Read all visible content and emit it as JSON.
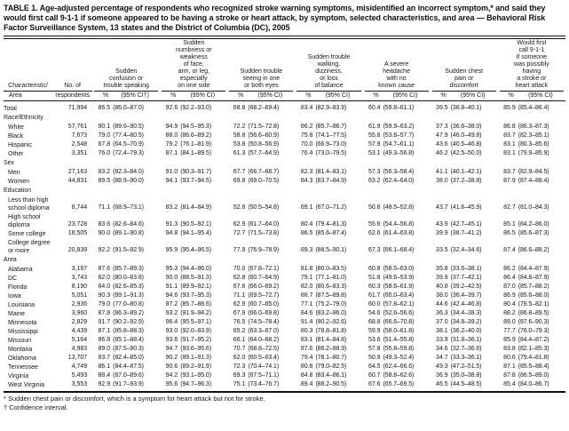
{
  "title": "TABLE 1. Age-adjusted percentage of respondents who recognized stroke warning symptoms, misidentified an incorrect symptom,* and said they would first call 9-1-1 if someone appeared to be having a stroke or heart attack, by symptom, selected characteristics, and area — Behavioral Risk Factor Surveillance System, 13 states and the District of Columbia (DC), 2005",
  "table": {
    "row_header": {
      "line1": "Characteristic/",
      "line2": "Area"
    },
    "n_header": {
      "line1": "No. of",
      "line2": "respondents"
    },
    "subheader_pct": "%",
    "subheader_ci": "(95% CI)",
    "subheader_ci_first": "(95% CI†)",
    "columns": [
      {
        "id": "confusion",
        "lines": [
          "Sudden",
          "confusion or",
          "trouble speaking"
        ]
      },
      {
        "id": "numbness",
        "lines": [
          "Sudden",
          "numbness or",
          "weakness",
          "of face,",
          "arm, or leg,",
          "especially",
          "on one side"
        ]
      },
      {
        "id": "seeing",
        "lines": [
          "Sudden trouble",
          "seeing in one",
          "or both eyes"
        ]
      },
      {
        "id": "walking",
        "lines": [
          "Sudden trouble",
          "walking,",
          "dizziness,",
          "or loss",
          "of balance"
        ]
      },
      {
        "id": "headache",
        "lines": [
          "A severe",
          "headache",
          "with no",
          "known cause"
        ]
      },
      {
        "id": "chest-pain",
        "lines": [
          "Sudden chest",
          "pain or",
          "discomfort"
        ]
      },
      {
        "id": "call-911",
        "lines": [
          "Would first",
          "call 9-1-1",
          "if someone",
          "was possibly",
          "having",
          "a stroke or",
          "heart attack"
        ]
      }
    ],
    "rows": [
      {
        "type": "data",
        "label": "Total",
        "indent": false,
        "n": "71,994",
        "cells": [
          [
            "86.5",
            "(86.0–87.0)"
          ],
          [
            "92.6",
            "(92.2–93.0)"
          ],
          [
            "68.8",
            "(68.2–69.4)"
          ],
          [
            "83.4",
            "(82.9–83.9)"
          ],
          [
            "60.4",
            "(59.8–61.1)"
          ],
          [
            "39.5",
            "(38.8–40.1)"
          ],
          [
            "85.9",
            "(85.4–86.4)"
          ]
        ]
      },
      {
        "type": "section",
        "label": "Race/Ethnicity"
      },
      {
        "type": "data",
        "label": "White",
        "indent": true,
        "n": "57,761",
        "cells": [
          [
            "90.1",
            "(89.6–90.5)"
          ],
          [
            "94.9",
            "(94.5–95.3)"
          ],
          [
            "72.2",
            "(71.5–72.8)"
          ],
          [
            "86.2",
            "(85.7–86.7)"
          ],
          [
            "61.9",
            "(59.9–63.2)"
          ],
          [
            "37.3",
            "(36.6–38.0)"
          ],
          [
            "86.8",
            "(86.3–87.3)"
          ]
        ]
      },
      {
        "type": "data",
        "label": "Black",
        "indent": true,
        "n": "7,673",
        "cells": [
          [
            "79.0",
            "(77.4–80.5)"
          ],
          [
            "88.0",
            "(86.6–89.2)"
          ],
          [
            "58.8",
            "(56.6–60.9)"
          ],
          [
            "75.8",
            "(74.1–77.5)"
          ],
          [
            "55.8",
            "(53.8–57.7)"
          ],
          [
            "47.9",
            "(46.0–49.8)"
          ],
          [
            "83.7",
            "(82.3–85.1)"
          ]
        ]
      },
      {
        "type": "data",
        "label": "Hispanic",
        "indent": true,
        "n": "2,548",
        "cells": [
          [
            "67.8",
            "(64.5–70.9)"
          ],
          [
            "79.2",
            "(76.1–81.9)"
          ],
          [
            "53.8",
            "(50.8–56.9)"
          ],
          [
            "70.0",
            "(66.9–73.0)"
          ],
          [
            "57.9",
            "(54.7–61.1)"
          ],
          [
            "43.6",
            "(40.5–46.8)"
          ],
          [
            "83.1",
            "(80.3–85.6)"
          ]
        ]
      },
      {
        "type": "data",
        "label": "Other",
        "indent": true,
        "n": "3,351",
        "cells": [
          [
            "76.0",
            "(72.4–79.3)"
          ],
          [
            "87.1",
            "(84.1–89.5)"
          ],
          [
            "61.3",
            "(57.7–64.9)"
          ],
          [
            "76.4",
            "(73.0–79.5)"
          ],
          [
            "53.1",
            "(49.3–56.8)"
          ],
          [
            "46.2",
            "(42.5–50.0)"
          ],
          [
            "83.1",
            "(79.9–85.9)"
          ]
        ]
      },
      {
        "type": "section",
        "label": "Sex"
      },
      {
        "type": "data",
        "label": "Men",
        "indent": true,
        "n": "27,163",
        "cells": [
          [
            "83.2",
            "(82.3–84.0)"
          ],
          [
            "91.0",
            "(90.3–91.7)"
          ],
          [
            "67.7",
            "(66.7–68.7)"
          ],
          [
            "82.3",
            "(81.4–83.1)"
          ],
          [
            "57.3",
            "(56.3–58.4)"
          ],
          [
            "41.1",
            "(40.1–42.1)"
          ],
          [
            "83.7",
            "(82.9–84.5)"
          ]
        ]
      },
      {
        "type": "data",
        "label": "Women",
        "indent": true,
        "n": "44,831",
        "cells": [
          [
            "89.5",
            "(88.9–90.0)"
          ],
          [
            "94.1",
            "(93.7–94.5)"
          ],
          [
            "69.8",
            "(69.0–70.5)"
          ],
          [
            "84.3",
            "(83.7–84.9)"
          ],
          [
            "63.2",
            "(62.4–64.0)"
          ],
          [
            "38.0",
            "(37.2–38.8)"
          ],
          [
            "87.9",
            "(87.4–88.4)"
          ]
        ]
      },
      {
        "type": "section",
        "label": "Education"
      },
      {
        "type": "data",
        "label": "Less than high school diploma",
        "indent": true,
        "n": "8,744",
        "cells": [
          [
            "71.1",
            "(68.9–73.1)"
          ],
          [
            "83.2",
            "(81.4–84.9)"
          ],
          [
            "52.6",
            "(50.5–54.8)"
          ],
          [
            "69.1",
            "(67.0–71.2)"
          ],
          [
            "50.6",
            "(48.5–52.8)"
          ],
          [
            "43.7",
            "(41.6–45.9)"
          ],
          [
            "82.7",
            "(81.0–84.3)"
          ]
        ]
      },
      {
        "type": "data",
        "label": "High school diploma",
        "indent": true,
        "n": "23,728",
        "cells": [
          [
            "83.6",
            "(82.6–84.6)"
          ],
          [
            "91.3",
            "(90.5–92.1)"
          ],
          [
            "62.9",
            "(61.7–64.0)"
          ],
          [
            "80.4",
            "(79.4–81.3)"
          ],
          [
            "55.6",
            "(54.4–56.8)"
          ],
          [
            "43.9",
            "(42.7–45.1)"
          ],
          [
            "85.1",
            "(84.2–86.0)"
          ]
        ]
      },
      {
        "type": "data",
        "label": "Some college",
        "indent": true,
        "n": "18,505",
        "cells": [
          [
            "90.0",
            "(89.1–90.8)"
          ],
          [
            "94.8",
            "(94.1–95.4)"
          ],
          [
            "72.7",
            "(71.5–73.8)"
          ],
          [
            "86.5",
            "(85.6–87.4)"
          ],
          [
            "62.6",
            "(61.4–63.8)"
          ],
          [
            "39.9",
            "(38.7–41.2)"
          ],
          [
            "86.5",
            "(85.6–87.3)"
          ]
        ]
      },
      {
        "type": "data",
        "label": "College degree or more",
        "indent": true,
        "n": "20,839",
        "cells": [
          [
            "92.2",
            "(91.5–92.9)"
          ],
          [
            "95.9",
            "(95.4–96.5)"
          ],
          [
            "77.9",
            "(76.9–78.9)"
          ],
          [
            "89.3",
            "(88.5–90.1)"
          ],
          [
            "67.3",
            "(66.1–68.4)"
          ],
          [
            "33.5",
            "(32.4–34.6)"
          ],
          [
            "87.4",
            "(86.6–88.2)"
          ]
        ]
      },
      {
        "type": "section",
        "label": "Area"
      },
      {
        "type": "data",
        "label": "Alabama",
        "indent": true,
        "n": "3,197",
        "cells": [
          [
            "87.6",
            "(85.7–89.3)"
          ],
          [
            "95.3",
            "(94.4–96.0)"
          ],
          [
            "70.0",
            "(67.8–72.1)"
          ],
          [
            "81.8",
            "(80.0–83.5)"
          ],
          [
            "60.8",
            "(58.5–63.0)"
          ],
          [
            "35.8",
            "(33.6–38.1)"
          ],
          [
            "86.2",
            "(84.4–87.9)"
          ]
        ]
      },
      {
        "type": "data",
        "label": "DC",
        "indent": true,
        "n": "3,743",
        "cells": [
          [
            "82.0",
            "(80.0–83.8)"
          ],
          [
            "90.0",
            "(88.5–91.3)"
          ],
          [
            "62.8",
            "(60.7–64.9)"
          ],
          [
            "79.1",
            "(77.1–81.0)"
          ],
          [
            "51.8",
            "(49.6–53.9)"
          ],
          [
            "39.9",
            "(37.7–42.1)"
          ],
          [
            "86.4",
            "(84.8–87.9)"
          ]
        ]
      },
      {
        "type": "data",
        "label": "Florida",
        "indent": true,
        "n": "8,190",
        "cells": [
          [
            "84.0",
            "(82.6–85.3)"
          ],
          [
            "91.1",
            "(89.9–92.1)"
          ],
          [
            "67.6",
            "(66.0–69.2)"
          ],
          [
            "82.0",
            "(80.6–83.3)"
          ],
          [
            "60.3",
            "(58.6–61.9)"
          ],
          [
            "40.8",
            "(39.2–42.5)"
          ],
          [
            "87.0",
            "(85.7–88.2)"
          ]
        ]
      },
      {
        "type": "data",
        "label": "Iowa",
        "indent": true,
        "n": "5,051",
        "cells": [
          [
            "90.3",
            "(89.1–91.3)"
          ],
          [
            "94.6",
            "(93.7–95.3)"
          ],
          [
            "71.1",
            "(69.5–72.7)"
          ],
          [
            "88.7",
            "(87.5–89.8)"
          ],
          [
            "61.7",
            "(60.0–63.4)"
          ],
          [
            "38.0",
            "(36.4–39.7)"
          ],
          [
            "86.9",
            "(85.6–88.0)"
          ]
        ]
      },
      {
        "type": "data",
        "label": "Louisiana",
        "indent": true,
        "n": "2,936",
        "cells": [
          [
            "79.0",
            "(77.0–80.8)"
          ],
          [
            "87.2",
            "(85.7–88.6)"
          ],
          [
            "62.9",
            "(60.7–65.0)"
          ],
          [
            "77.1",
            "(75.2–79.0)"
          ],
          [
            "60.0",
            "(57.8–62.1)"
          ],
          [
            "44.6",
            "(42.4–46.8)"
          ],
          [
            "80.4",
            "(78.5–82.1)"
          ]
        ]
      },
      {
        "type": "data",
        "label": "Maine",
        "indent": true,
        "n": "3,960",
        "cells": [
          [
            "87.8",
            "(86.3–89.2)"
          ],
          [
            "93.2",
            "(91.9–94.2)"
          ],
          [
            "67.9",
            "(66.0–69.8)"
          ],
          [
            "84.6",
            "(83.2–86.0)"
          ],
          [
            "54.6",
            "(52.6–56.6)"
          ],
          [
            "36.3",
            "(34.4–38.3)"
          ],
          [
            "88.2",
            "(86.8–89.5)"
          ]
        ]
      },
      {
        "type": "data",
        "label": "Minnesota",
        "indent": true,
        "n": "2,829",
        "cells": [
          [
            "91.7",
            "(90.2–92.9)"
          ],
          [
            "96.4",
            "(95.5–97.1)"
          ],
          [
            "76.5",
            "(74.5–78.4)"
          ],
          [
            "91.4",
            "(90.2–92.6)"
          ],
          [
            "68.8",
            "(66.6–70.8)"
          ],
          [
            "37.0",
            "(34.8–39.2)"
          ],
          [
            "89.0",
            "(87.6–90.3)"
          ]
        ]
      },
      {
        "type": "data",
        "label": "Mississippi",
        "indent": true,
        "n": "4,439",
        "cells": [
          [
            "87.1",
            "(85.8–88.3)"
          ],
          [
            "93.0",
            "(92.0–93.9)"
          ],
          [
            "65.2",
            "(63.3–67.0)"
          ],
          [
            "80.3",
            "(78.8–81.8)"
          ],
          [
            "59.9",
            "(58.0–61.8)"
          ],
          [
            "38.1",
            "(36.2–40.0)"
          ],
          [
            "77.7",
            "(76.0–79.3)"
          ]
        ]
      },
      {
        "type": "data",
        "label": "Missouri",
        "indent": true,
        "n": "5,164",
        "cells": [
          [
            "86.8",
            "(85.1–88.4)"
          ],
          [
            "93.6",
            "(91.7–95.2)"
          ],
          [
            "66.1",
            "(64.0–68.2)"
          ],
          [
            "83.1",
            "(81.4–84.8)"
          ],
          [
            "53.6",
            "(51.4–55.8)"
          ],
          [
            "33.9",
            "(31.8–36.1)"
          ],
          [
            "85.9",
            "(84.4–87.2)"
          ]
        ]
      },
      {
        "type": "data",
        "label": "Montana",
        "indent": true,
        "n": "4,983",
        "cells": [
          [
            "89.0",
            "(87.5–90.3)"
          ],
          [
            "94.7",
            "(93.6–95.6)"
          ],
          [
            "70.7",
            "(68.8–72.5)"
          ],
          [
            "87.6",
            "(86.2–88.9)"
          ],
          [
            "57.8",
            "(55.8–59.8)"
          ],
          [
            "34.6",
            "(32.7–36.6)"
          ],
          [
            "83.8",
            "(82.1–85.3)"
          ]
        ]
      },
      {
        "type": "data",
        "label": "Oklahoma",
        "indent": true,
        "n": "13,707",
        "cells": [
          [
            "83.7",
            "(82.4–85.0)"
          ],
          [
            "90.2",
            "(89.1–91.3)"
          ],
          [
            "62.0",
            "(60.5–63.4)"
          ],
          [
            "79.4",
            "(78.1–80.7)"
          ],
          [
            "50.9",
            "(49.3–52.4)"
          ],
          [
            "34.7",
            "(33.3–36.1)"
          ],
          [
            "80.6",
            "(79.4–81.8)"
          ]
        ]
      },
      {
        "type": "data",
        "label": "Tennessee",
        "indent": true,
        "n": "4,749",
        "cells": [
          [
            "86.1",
            "(84.4–87.5)"
          ],
          [
            "90.6",
            "(89.2–91.9)"
          ],
          [
            "72.3",
            "(70.4–74.1)"
          ],
          [
            "80.8",
            "(79.0–82.5)"
          ],
          [
            "64.5",
            "(62.4–66.6)"
          ],
          [
            "49.3",
            "(47.2–51.5)"
          ],
          [
            "87.1",
            "(85.5–88.4)"
          ]
        ]
      },
      {
        "type": "data",
        "label": "Virginia",
        "indent": true,
        "n": "5,493",
        "cells": [
          [
            "88.4",
            "(87.0–89.6)"
          ],
          [
            "94.2",
            "(93.1–95.0)"
          ],
          [
            "69.3",
            "(67.5–71.1)"
          ],
          [
            "84.8",
            "(83.4–86.1)"
          ],
          [
            "60.7",
            "(58.8–62.6)"
          ],
          [
            "36.9",
            "(35.0–38.8)"
          ],
          [
            "87.8",
            "(86.5–89.0)"
          ]
        ]
      },
      {
        "type": "data",
        "label": "West Virginia",
        "indent": true,
        "n": "3,553",
        "cells": [
          [
            "92.9",
            "(91.7–93.9)"
          ],
          [
            "95.6",
            "(94.7–96.3)"
          ],
          [
            "75.1",
            "(73.4–76.7)"
          ],
          [
            "89.4",
            "(88.2–90.5)"
          ],
          [
            "67.6",
            "(65.7–69.5)"
          ],
          [
            "46.5",
            "(44.5–48.5)"
          ],
          [
            "85.4",
            "(84.0–86.7)"
          ]
        ]
      }
    ]
  },
  "footnotes": [
    "* Sudden chest pain or discomfort, which is a symptom for heart attack but not for stroke.",
    "† Confidence interval."
  ]
}
